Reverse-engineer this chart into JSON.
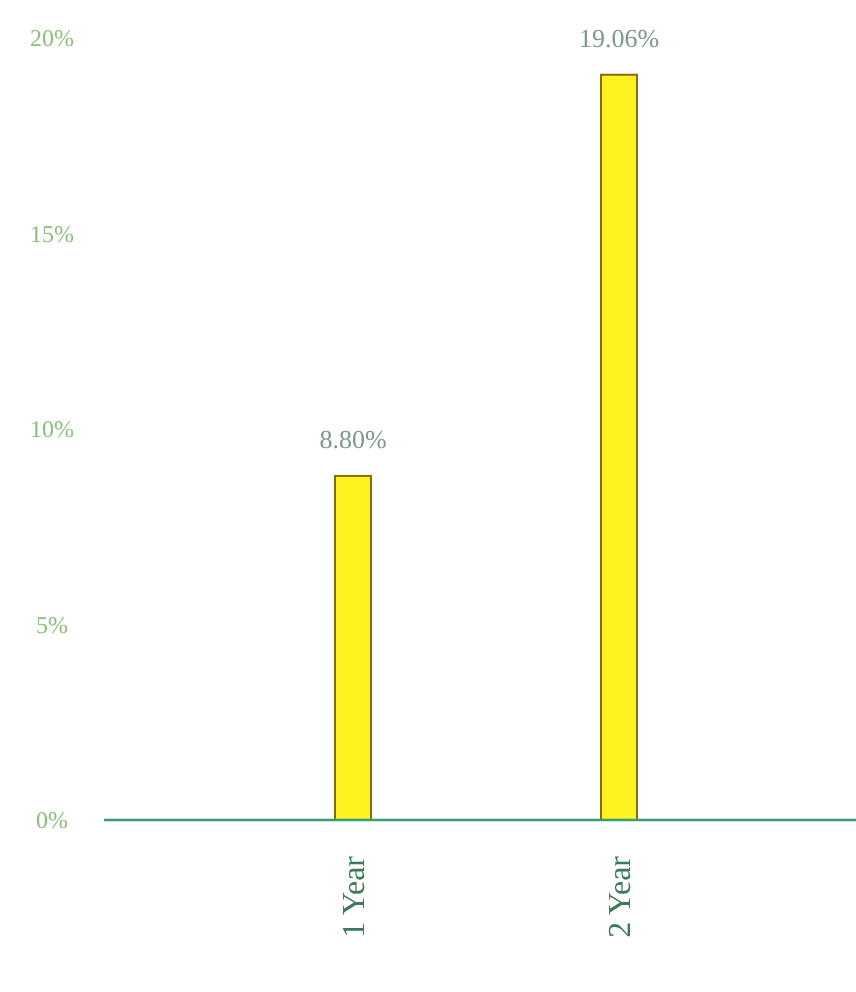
{
  "chart_data": {
    "type": "bar",
    "categories": [
      "1 Year",
      "2 Year"
    ],
    "values": [
      8.8,
      19.06
    ],
    "color": "#fff21e",
    "value_labels": [
      "8.80%",
      "19.06%"
    ],
    "ylim": [
      0,
      20
    ],
    "yticks": [
      {
        "value": 0,
        "label": "0%"
      },
      {
        "value": 5,
        "label": "5%"
      },
      {
        "value": 10,
        "label": "10%"
      },
      {
        "value": 15,
        "label": "15%"
      },
      {
        "value": 20,
        "label": "20%"
      }
    ],
    "grid": false
  }
}
